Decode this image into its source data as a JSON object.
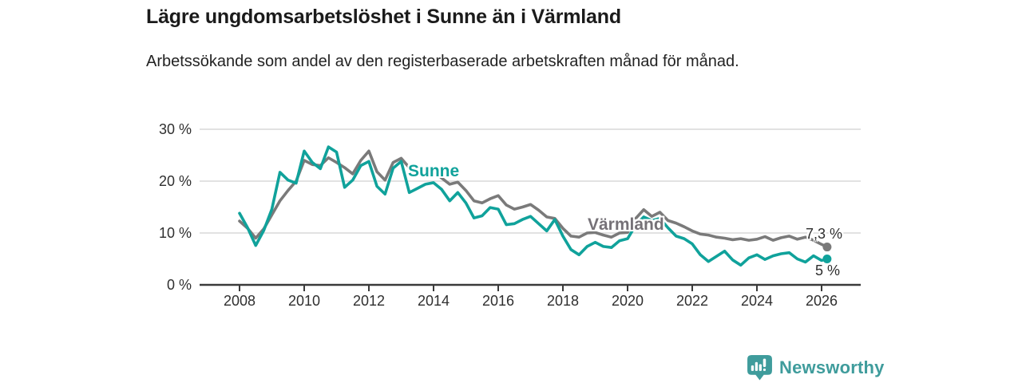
{
  "header": {
    "title": "Lägre ungdomsarbetslöshet i Sunne än i Värmland",
    "subtitle": "Arbetssökande som andel av den registerbaserade arbetskraften månad för månad."
  },
  "colors": {
    "sunne": "#10a29b",
    "varmland": "#7a7a7a",
    "varmland_label": "#757177",
    "grid": "#d9d9d9",
    "axis": "#3a3a3a",
    "brand_teal": "#3f9c9c"
  },
  "chart_data": {
    "type": "line",
    "title": "Lägre ungdomsarbetslöshet i Sunne än i Värmland",
    "subtitle": "Arbetssökande som andel av den registerbaserade arbetskraften månad för månad.",
    "unit": "%",
    "grid": "horizontal",
    "legend": "inline-labels",
    "ylim": [
      0,
      30
    ],
    "xlim": [
      2008,
      2026.2
    ],
    "yticks": [
      {
        "value": 30,
        "label": "30 %"
      },
      {
        "value": 20,
        "label": "20 %"
      },
      {
        "value": 10,
        "label": "10 %"
      },
      {
        "value": 0,
        "label": "0 %"
      }
    ],
    "xticks": [
      {
        "value": 2008,
        "label": "2008"
      },
      {
        "value": 2010,
        "label": "2010"
      },
      {
        "value": 2012,
        "label": "2012"
      },
      {
        "value": 2014,
        "label": "2014"
      },
      {
        "value": 2016,
        "label": "2016"
      },
      {
        "value": 2018,
        "label": "2018"
      },
      {
        "value": 2020,
        "label": "2020"
      },
      {
        "value": 2022,
        "label": "2022"
      },
      {
        "value": 2024,
        "label": "2024"
      },
      {
        "value": 2026,
        "label": "2026"
      }
    ],
    "x": [
      2008,
      2008.25,
      2008.5,
      2008.75,
      2009,
      2009.25,
      2009.5,
      2009.75,
      2010,
      2010.25,
      2010.5,
      2010.75,
      2011,
      2011.25,
      2011.5,
      2011.75,
      2012,
      2012.25,
      2012.5,
      2012.75,
      2013,
      2013.25,
      2013.5,
      2013.75,
      2014,
      2014.25,
      2014.5,
      2014.75,
      2015,
      2015.25,
      2015.5,
      2015.75,
      2016,
      2016.25,
      2016.5,
      2016.75,
      2017,
      2017.25,
      2017.5,
      2017.75,
      2018,
      2018.25,
      2018.5,
      2018.75,
      2019,
      2019.25,
      2019.5,
      2019.75,
      2020,
      2020.25,
      2020.5,
      2020.75,
      2021,
      2021.25,
      2021.5,
      2021.75,
      2022,
      2022.25,
      2022.5,
      2022.75,
      2023,
      2023.25,
      2023.5,
      2023.75,
      2024,
      2024.25,
      2024.5,
      2024.75,
      2025,
      2025.25,
      2025.5,
      2025.75,
      2026,
      2026.17
    ],
    "series": [
      {
        "name": "Värmland",
        "color": "#7a7a7a",
        "end_label": "7,3 %",
        "end_value": 7.3,
        "values": [
          12.3,
          10.9,
          9.0,
          10.8,
          13.5,
          16.2,
          18.2,
          20.0,
          24.0,
          23.2,
          23.0,
          24.5,
          23.6,
          22.6,
          21.4,
          24.0,
          25.8,
          21.8,
          20.2,
          23.6,
          24.4,
          22.6,
          21.6,
          22.4,
          22.0,
          20.6,
          19.4,
          19.8,
          18.2,
          16.2,
          15.8,
          16.6,
          17.2,
          15.4,
          14.6,
          15.0,
          15.5,
          14.4,
          13.1,
          12.8,
          10.9,
          9.4,
          9.2,
          10.0,
          10.1,
          9.6,
          9.2,
          10.0,
          10.1,
          12.8,
          14.5,
          13.2,
          14.0,
          12.4,
          11.9,
          11.2,
          10.4,
          9.8,
          9.6,
          9.2,
          9.0,
          8.7,
          8.9,
          8.6,
          8.8,
          9.3,
          8.6,
          9.1,
          9.4,
          8.8,
          9.2,
          8.6,
          7.8,
          7.3
        ]
      },
      {
        "name": "Sunne",
        "color": "#10a29b",
        "end_label": "5 %",
        "end_value": 5,
        "values": [
          13.8,
          11.0,
          7.6,
          10.5,
          14.6,
          21.7,
          20.2,
          19.6,
          25.8,
          23.6,
          22.4,
          26.6,
          25.6,
          18.8,
          20.2,
          23.0,
          23.8,
          19.0,
          17.5,
          22.5,
          23.8,
          17.8,
          18.6,
          19.4,
          19.7,
          18.4,
          16.2,
          17.8,
          15.8,
          12.9,
          13.3,
          14.9,
          14.6,
          11.6,
          11.8,
          12.6,
          13.2,
          11.8,
          10.4,
          12.6,
          9.4,
          6.8,
          5.8,
          7.4,
          8.2,
          7.4,
          7.2,
          8.5,
          8.9,
          11.5,
          13.1,
          12.4,
          12.8,
          11.0,
          9.4,
          8.9,
          7.9,
          5.8,
          4.5,
          5.5,
          6.5,
          4.8,
          3.8,
          5.2,
          5.8,
          4.9,
          5.6,
          6.0,
          6.2,
          5.0,
          4.4,
          5.6,
          4.7,
          5.0
        ]
      }
    ]
  },
  "annotations": {
    "sunne_label": "Sunne",
    "varmland_label": "Värmland",
    "varmland_end": "7,3 %",
    "sunne_end": "5 %"
  },
  "footer": {
    "brand": "Newsworthy"
  }
}
